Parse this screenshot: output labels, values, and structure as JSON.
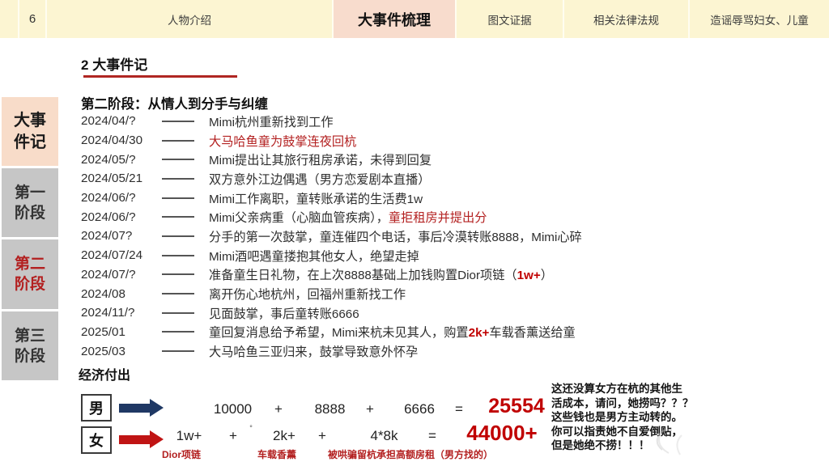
{
  "page": {
    "number": "6"
  },
  "header": {
    "tabs": [
      {
        "label": "人物介绍",
        "active": false
      },
      {
        "label": "大事件梳理",
        "active": true
      },
      {
        "label": "图文证据",
        "active": false
      },
      {
        "label": "相关法律法规",
        "active": false
      },
      {
        "label": "造谣辱骂妇女、儿童",
        "active": false
      }
    ]
  },
  "section": {
    "number": "2",
    "title": "大事件记"
  },
  "sidebar": {
    "items": [
      {
        "label": "大事件记",
        "lines": [
          "大事",
          "件记"
        ],
        "active": true
      },
      {
        "label": "第一阶段",
        "lines": [
          "第一",
          "阶段"
        ],
        "active": false
      },
      {
        "label": "第二阶段",
        "lines": [
          "第二",
          "阶段"
        ],
        "active": false,
        "highlighted": true
      },
      {
        "label": "第三阶段",
        "lines": [
          "第三",
          "阶段"
        ],
        "active": false
      }
    ]
  },
  "timeline": {
    "heading": "第二阶段：从情人到分手与纠缠",
    "rows": [
      {
        "date": "2024/04/?",
        "segments": [
          {
            "text": "Mimi杭州重新找到工作",
            "color": "normal"
          }
        ]
      },
      {
        "date": "2024/04/30",
        "segments": [
          {
            "text": "大马哈鱼童为鼓掌连夜回杭",
            "color": "red"
          }
        ]
      },
      {
        "date": "2024/05/?",
        "segments": [
          {
            "text": "Mimi提出让其旅行租房承诺，未得到回复",
            "color": "normal"
          }
        ]
      },
      {
        "date": "2024/05/21",
        "segments": [
          {
            "text": "双方意外江边偶遇（男方恋爱剧本直播）",
            "color": "normal"
          }
        ]
      },
      {
        "date": "2024/06/?",
        "segments": [
          {
            "text": "Mimi工作离职，童转账承诺的生活费1w",
            "color": "normal"
          }
        ]
      },
      {
        "date": "2024/06/?",
        "segments": [
          {
            "text": "Mimi父亲病重（心脑血管疾病），",
            "color": "normal"
          },
          {
            "text": "童拒租房并提出分",
            "color": "red"
          }
        ]
      },
      {
        "date": "2024/07?",
        "segments": [
          {
            "text": "分手的第一次鼓掌，童连催四个电话，事后冷漠转账8888，Mimi心碎",
            "color": "normal"
          }
        ]
      },
      {
        "date": "2024/07/24",
        "segments": [
          {
            "text": "Mimi酒吧遇童搂抱其他女人，绝望走掉",
            "color": "normal"
          }
        ]
      },
      {
        "date": "2024/07/?",
        "segments": [
          {
            "text": "准备童生日礼物，在上次8888基础上加钱购置Dior项链（",
            "color": "normal"
          },
          {
            "text": "1w+",
            "color": "red-bold"
          },
          {
            "text": "）",
            "color": "normal"
          }
        ]
      },
      {
        "date": "2024/08",
        "segments": [
          {
            "text": "离开伤心地杭州，回福州重新找工作",
            "color": "normal"
          }
        ]
      },
      {
        "date": "2024/11/?",
        "segments": [
          {
            "text": "见面鼓掌，事后童转账6666",
            "color": "normal"
          }
        ]
      },
      {
        "date": "2025/01",
        "segments": [
          {
            "text": "童回复消息给予希望，Mimi来杭未见其人，购置",
            "color": "normal"
          },
          {
            "text": "2k+",
            "color": "red-bold"
          },
          {
            "text": "车载香薰送给童",
            "color": "normal"
          }
        ]
      },
      {
        "date": "2025/03",
        "segments": [
          {
            "text": "大马哈鱼三亚归来，鼓掌导致意外怀孕",
            "color": "normal"
          }
        ]
      }
    ]
  },
  "economy": {
    "heading": "经济付出",
    "male": {
      "label": "男",
      "terms": [
        "10000",
        "8888",
        "6666"
      ],
      "plus": "+",
      "equals": "=",
      "result": "25554"
    },
    "female": {
      "label": "女",
      "terms": [
        "1w+",
        "2k+",
        "4*8k"
      ],
      "plus": "+",
      "equals": "=",
      "degree_mark": "°",
      "result": "44000+",
      "term_labels": [
        "Dior项链",
        "车载香薰",
        "被哄骗留杭承担高额房租（男方找的）"
      ]
    },
    "note_lines": [
      "这还没算女方在杭的其他生",
      "活成本，请问，她捞吗？？？",
      "这些钱也是男方主动转的。",
      "你可以指责她不自爱倒贴，",
      "但是她绝不捞！！！"
    ]
  },
  "colors": {
    "bar_cream": "#fcf5d2",
    "tab_pink": "#f8dccd",
    "sidebar_gray": "#c6c6c6",
    "accent_red": "#c00000",
    "navy_arrow": "#1f3864",
    "red_arrow": "#c01414"
  }
}
